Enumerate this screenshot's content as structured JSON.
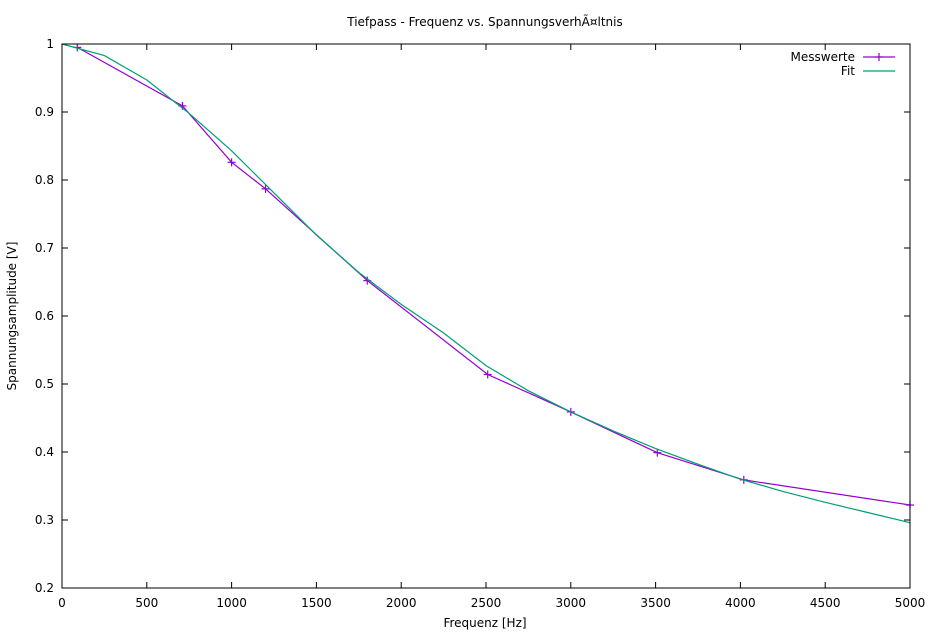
{
  "chart_data": {
    "type": "line",
    "title": "Tiefpass - Frequenz vs. SpannungsverhÃ¤ltnis",
    "xlabel": "Frequenz [Hz]",
    "ylabel": "Spannungsamplitude [V]",
    "xlim": [
      0,
      5000
    ],
    "ylim": [
      0.2,
      1
    ],
    "xticks": [
      0,
      500,
      1000,
      1500,
      2000,
      2500,
      3000,
      3500,
      4000,
      4500,
      5000
    ],
    "yticks": [
      0.2,
      0.3,
      0.4,
      0.5,
      0.6,
      0.7,
      0.8,
      0.9,
      1
    ],
    "ytick_labels": [
      "0.2",
      "0.3",
      "0.4",
      "0.5",
      "0.6",
      "0.7",
      "0.8",
      "0.9",
      "1"
    ],
    "grid": false,
    "legend_position": "top-right",
    "series": [
      {
        "name": "Messwerte",
        "style": "linespoints",
        "color": "#9400d3",
        "x": [
          90,
          710,
          1000,
          1200,
          1800,
          2510,
          3000,
          3510,
          4020,
          5000
        ],
        "y": [
          0.995,
          0.909,
          0.826,
          0.787,
          0.652,
          0.514,
          0.459,
          0.399,
          0.359,
          0.322
        ]
      },
      {
        "name": "Fit",
        "style": "lines",
        "color": "#009e73",
        "x": [
          0,
          250,
          500,
          750,
          1000,
          1250,
          1500,
          1750,
          2000,
          2250,
          2500,
          2750,
          3000,
          3250,
          3500,
          3750,
          4000,
          4250,
          4500,
          4750,
          5000
        ],
        "y": [
          1.0,
          0.983,
          0.947,
          0.898,
          0.843,
          0.781,
          0.719,
          0.664,
          0.617,
          0.575,
          0.527,
          0.49,
          0.459,
          0.431,
          0.405,
          0.382,
          0.36,
          0.342,
          0.326,
          0.311,
          0.296
        ]
      }
    ]
  }
}
